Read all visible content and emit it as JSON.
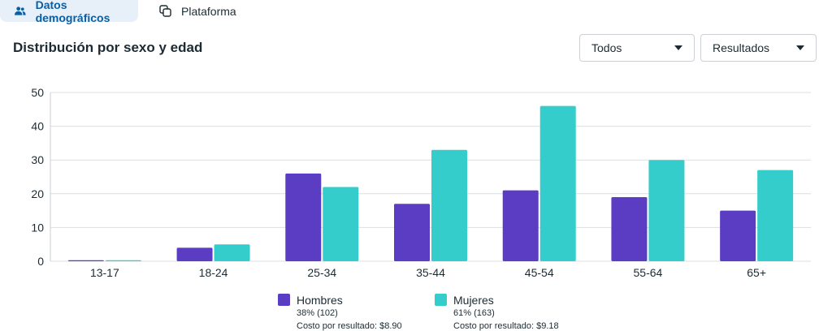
{
  "tabs": [
    {
      "label": "Datos demográficos",
      "icon": "people-icon",
      "active": true
    },
    {
      "label": "Plataforma",
      "icon": "copy-icon",
      "active": false
    }
  ],
  "section": {
    "title": "Distribución por sexo y edad"
  },
  "filters": {
    "audience": "Todos",
    "metric": "Resultados"
  },
  "colors": {
    "hombres": "#5a3dc2",
    "mujeres": "#35cdcc",
    "grid": "#dcdfe3",
    "text": "#1c2b33",
    "accent": "#0a5fa3"
  },
  "legend": [
    {
      "name": "Hombres",
      "stat": "38% (102)",
      "cost": "Costo por resultado: $8.90"
    },
    {
      "name": "Mujeres",
      "stat": "61% (163)",
      "cost": "Costo por resultado: $9.18"
    }
  ],
  "chart_data": {
    "type": "bar",
    "title": "Distribución por sexo y edad",
    "categories": [
      "13-17",
      "18-24",
      "25-34",
      "35-44",
      "45-54",
      "55-64",
      "65+"
    ],
    "series": [
      {
        "name": "Hombres",
        "values": [
          0.3,
          4,
          26,
          17,
          21,
          19,
          15
        ]
      },
      {
        "name": "Mujeres",
        "values": [
          0.3,
          5,
          22,
          33,
          46,
          30,
          27
        ]
      }
    ],
    "yticks": [
      0,
      10,
      20,
      30,
      40,
      50
    ],
    "ylim": [
      0,
      50
    ],
    "xlabel": "",
    "ylabel": "",
    "grid": true,
    "legend": "bottom"
  }
}
